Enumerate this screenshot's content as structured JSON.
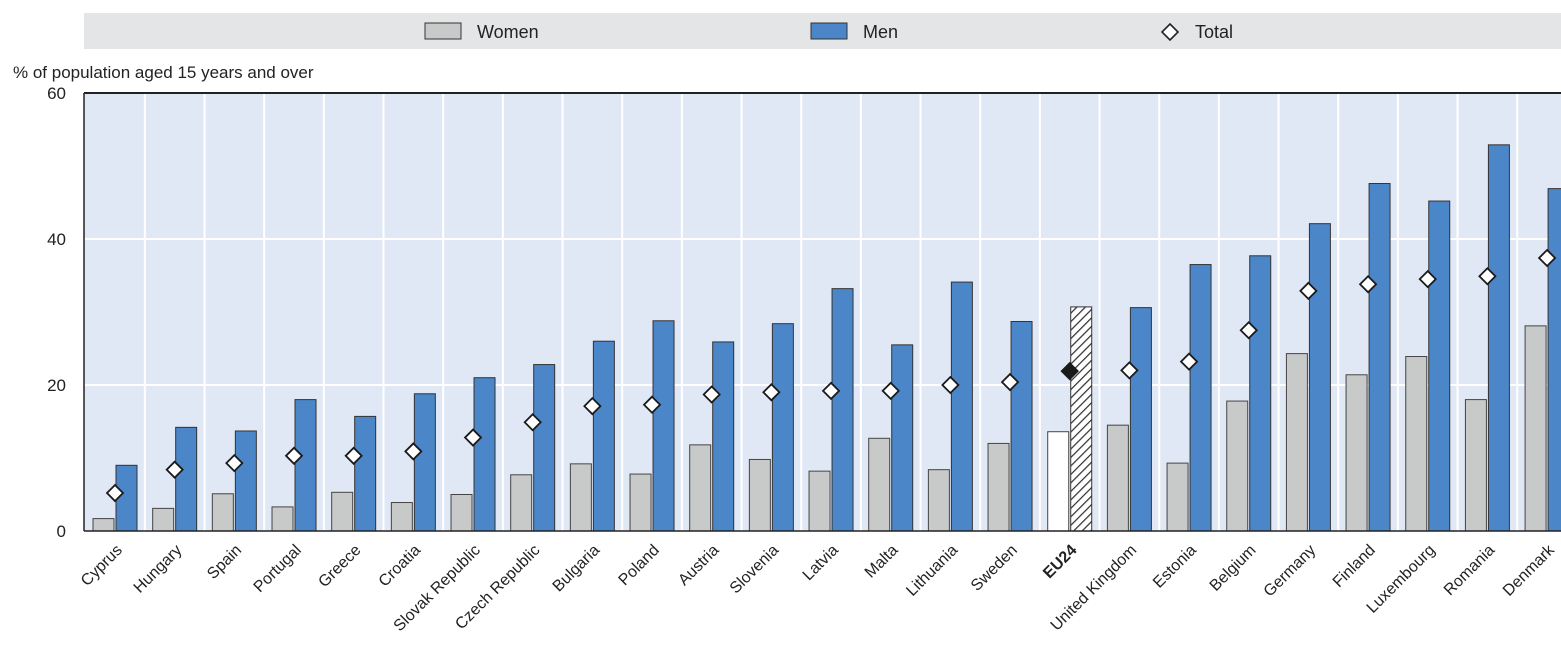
{
  "chart_data": {
    "type": "bar",
    "ylabel": "% of population aged 15 years and over",
    "ylim": [
      0,
      60
    ],
    "yticks": [
      0,
      20,
      40,
      60
    ],
    "grid": true,
    "legend_position": "top",
    "highlight_category": "EU24",
    "categories": [
      "Cyprus",
      "Hungary",
      "Spain",
      "Portugal",
      "Greece",
      "Croatia",
      "Slovak Republic",
      "Czech Republic",
      "Bulgaria",
      "Poland",
      "Austria",
      "Slovenia",
      "Latvia",
      "Malta",
      "Lithuania",
      "Sweden",
      "EU24",
      "United Kingdom",
      "Estonia",
      "Belgium",
      "Germany",
      "Finland",
      "Luxembourg",
      "Romania",
      "Denmark"
    ],
    "series": [
      {
        "name": "Women",
        "color": "#c8c9c9",
        "values": [
          1.7,
          3.1,
          5.1,
          3.3,
          5.3,
          3.9,
          5.0,
          7.7,
          9.2,
          7.8,
          11.8,
          9.8,
          8.2,
          12.7,
          8.4,
          12.0,
          13.6,
          14.5,
          9.3,
          17.8,
          24.3,
          21.4,
          23.9,
          18.0,
          28.1
        ]
      },
      {
        "name": "Men",
        "color": "#4a86c8",
        "values": [
          9.0,
          14.2,
          13.7,
          18.0,
          15.7,
          18.8,
          21.0,
          22.8,
          26.0,
          28.8,
          25.9,
          28.4,
          33.2,
          25.5,
          34.1,
          28.7,
          30.7,
          30.6,
          36.5,
          37.7,
          42.1,
          47.6,
          45.2,
          52.9,
          46.9
        ]
      },
      {
        "name": "Total",
        "values": [
          5.2,
          8.4,
          9.3,
          10.3,
          10.3,
          10.9,
          12.8,
          14.9,
          17.1,
          17.3,
          18.7,
          19.0,
          19.2,
          19.2,
          20.0,
          20.4,
          21.9,
          22.0,
          23.2,
          27.5,
          32.9,
          33.8,
          34.5,
          34.9,
          37.4
        ]
      }
    ]
  }
}
